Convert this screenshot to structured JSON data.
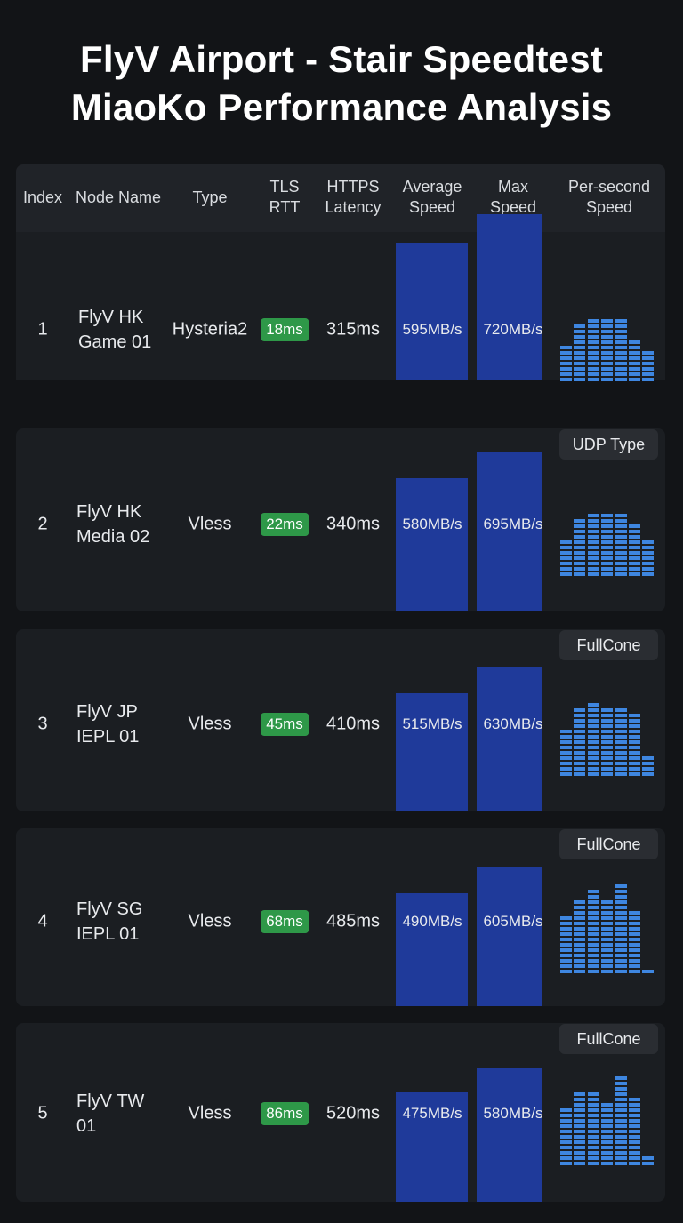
{
  "title": {
    "line1": "FlyV Airport - Stair Speedtest",
    "line2": "MiaoKo Performance Analysis"
  },
  "columns": {
    "index": "Index",
    "node_name": "Node Name",
    "type": "Type",
    "tls_rtt": [
      "TLS",
      "RTT"
    ],
    "https_latency": [
      "HTTPS",
      "Latency"
    ],
    "average_speed": [
      "Average",
      "Speed"
    ],
    "max_speed": [
      "Max",
      "Speed"
    ],
    "per_second_speed": [
      "Per-second",
      "Speed"
    ]
  },
  "colors": {
    "background": "#121417",
    "row": "#1b1e22",
    "speed_bar": "#1f3a9a",
    "rtt_badge": "#2e9848",
    "per_second": "#3e86e0"
  },
  "rows": [
    {
      "index": "1",
      "name": [
        "FlyV HK",
        "Game 01"
      ],
      "type": "Hysteria2",
      "tls_rtt": "18ms",
      "https_latency": "315ms",
      "avg_label": "595MB/s",
      "max_label": "720MB/s",
      "tag": ""
    },
    {
      "index": "2",
      "name": [
        "FlyV HK",
        "Media 02"
      ],
      "type": "Vless",
      "tls_rtt": "22ms",
      "https_latency": "340ms",
      "avg_label": "580MB/s",
      "max_label": "695MB/s",
      "tag": "UDP Type"
    },
    {
      "index": "3",
      "name": [
        "FlyV JP",
        "IEPL 01"
      ],
      "type": "Vless",
      "tls_rtt": "45ms",
      "https_latency": "410ms",
      "avg_label": "515MB/s",
      "max_label": "630MB/s",
      "tag": "FullCone"
    },
    {
      "index": "4",
      "name": [
        "FlyV SG",
        "IEPL 01"
      ],
      "type": "Vless",
      "tls_rtt": "68ms",
      "https_latency": "485ms",
      "avg_label": "490MB/s",
      "max_label": "605MB/s",
      "tag": "FullCone"
    },
    {
      "index": "5",
      "name": [
        "FlyV TW",
        "01"
      ],
      "type": "Vless",
      "tls_rtt": "86ms",
      "https_latency": "520ms",
      "avg_label": "475MB/s",
      "max_label": "580MB/s",
      "tag": "FullCone"
    }
  ],
  "chart_data": {
    "type": "bar",
    "categories": [
      "FlyV HK Game 01",
      "FlyV HK Media 02",
      "FlyV JP IEPL 01",
      "FlyV SG IEPL 01",
      "FlyV TW 01"
    ],
    "series": [
      {
        "name": "Average Speed",
        "values": [
          595,
          580,
          515,
          490,
          475
        ]
      },
      {
        "name": "Max Speed",
        "values": [
          720,
          695,
          630,
          605,
          580
        ]
      }
    ],
    "ylim": [
      0,
      760
    ],
    "per_second_levels": [
      [
        7,
        11,
        12,
        12,
        12,
        8,
        6
      ],
      [
        7,
        11,
        12,
        12,
        12,
        10,
        7
      ],
      [
        9,
        13,
        14,
        13,
        13,
        12,
        4
      ],
      [
        11,
        14,
        16,
        14,
        17,
        12,
        1
      ],
      [
        11,
        14,
        14,
        12,
        17,
        13,
        2
      ]
    ]
  }
}
